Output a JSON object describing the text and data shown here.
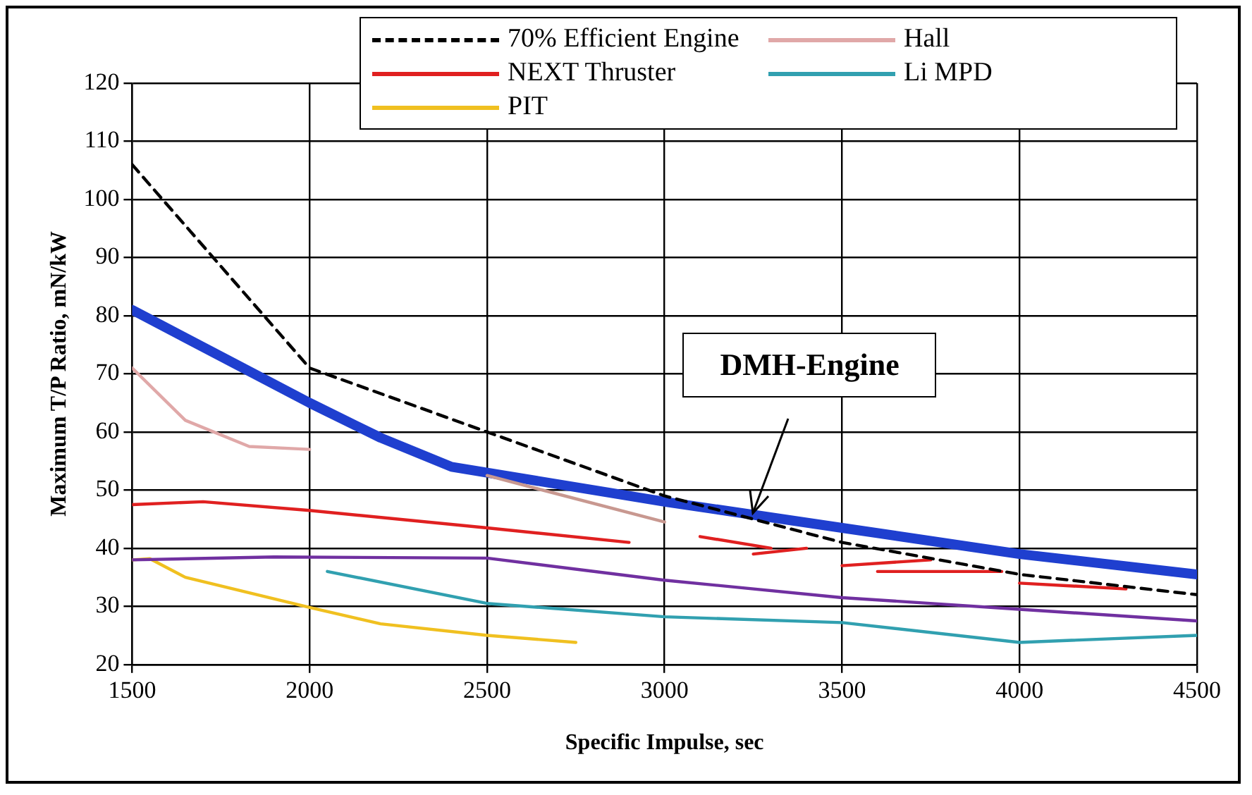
{
  "chart_data": {
    "type": "line",
    "xlabel": "Specific Impulse, sec",
    "ylabel": "Maximum T/P Ratio, mN/kW",
    "xlim": [
      1500,
      4500
    ],
    "xticks": [
      1500,
      2000,
      2500,
      3000,
      3500,
      4000,
      4500
    ],
    "ylim": [
      20,
      120
    ],
    "yticks": [
      20,
      30,
      40,
      50,
      60,
      70,
      80,
      90,
      100,
      110,
      120
    ],
    "grid": true,
    "legend": "top",
    "marker": "none",
    "series": [
      {
        "name": "70% Efficient Engine",
        "color": "#000000",
        "line_style": "dashed",
        "x": [
          1500,
          2000,
          2500,
          3000,
          3500,
          4000,
          4500
        ],
        "values": [
          106,
          71,
          60,
          49,
          41,
          35.5,
          32
        ]
      },
      {
        "color": "#c89890",
        "x": [
          2500,
          3000
        ],
        "values": [
          52.5,
          44.5
        ]
      },
      {
        "name": "Hall",
        "color": "#e0a8a8",
        "x": [
          1500,
          1650,
          1830,
          2000
        ],
        "values": [
          71,
          62,
          57.5,
          57
        ]
      },
      {
        "name": "NEXT Thruster",
        "color": "#e02020",
        "x": [
          1500,
          1700,
          2000,
          2500,
          2900
        ],
        "values": [
          47.5,
          48,
          46.5,
          43.5,
          41
        ]
      },
      {
        "color": "#7030a0",
        "x": [
          1500,
          1900,
          2500,
          3000,
          3500,
          4000,
          4500
        ],
        "values": [
          38,
          38.5,
          38.3,
          34.5,
          31.5,
          29.5,
          27.5
        ]
      },
      {
        "name": "Li MPD",
        "color": "#31a0b0",
        "x": [
          2050,
          2500,
          3000,
          3500,
          4000,
          4500
        ],
        "values": [
          36,
          30.5,
          28.2,
          27.2,
          23.8,
          25
        ]
      },
      {
        "name": "PIT",
        "color": "#f0c020",
        "x": [
          1500,
          1550,
          1650,
          2000,
          2200,
          2500,
          2750
        ],
        "values": [
          38,
          38.2,
          35,
          29.8,
          27,
          25,
          23.8
        ]
      },
      {
        "color": "#e02020",
        "x": [
          3100,
          3300
        ],
        "values": [
          42,
          40
        ]
      },
      {
        "color": "#e02020",
        "x": [
          3250,
          3400
        ],
        "values": [
          39,
          40
        ]
      },
      {
        "color": "#e02020",
        "x": [
          3500,
          3750
        ],
        "values": [
          37,
          38
        ]
      },
      {
        "color": "#e02020",
        "x": [
          3600,
          3950
        ],
        "values": [
          36,
          36
        ]
      },
      {
        "color": "#e02020",
        "x": [
          4000,
          4300
        ],
        "values": [
          34,
          33
        ]
      },
      {
        "color": "#1f3fcf",
        "x": [
          1500,
          2000,
          2200,
          2400,
          3000,
          3500,
          4000,
          4500
        ],
        "values": [
          81,
          65,
          59,
          54,
          48,
          43.5,
          39,
          35.5
        ]
      }
    ],
    "annotations": [
      {
        "text": "DMH-Engine",
        "x": 3250,
        "y": 46
      }
    ]
  }
}
